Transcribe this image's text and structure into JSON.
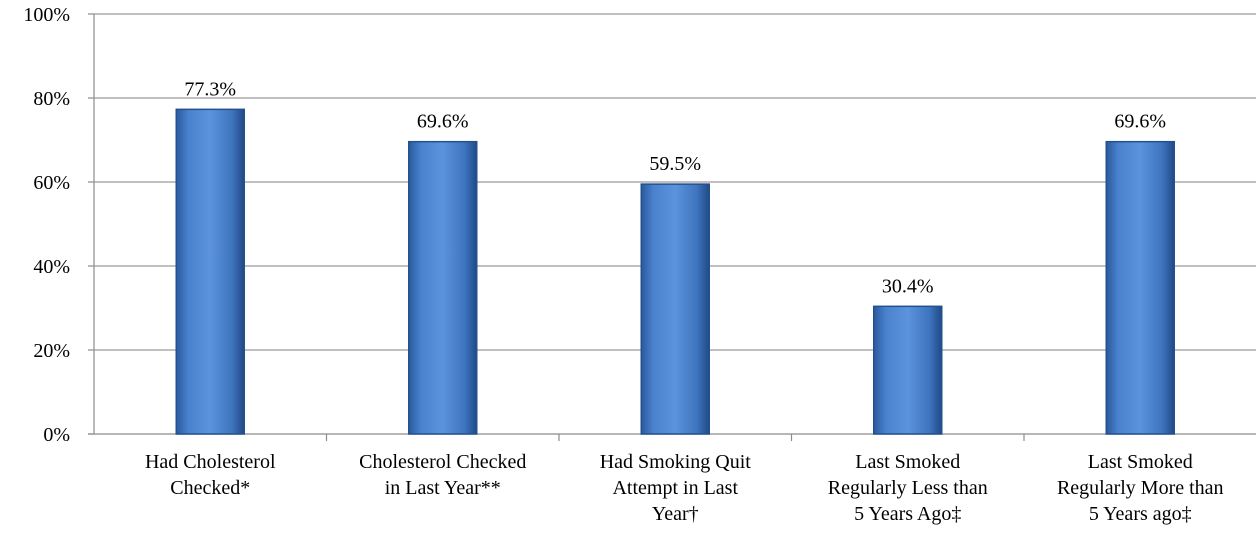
{
  "chart_data": {
    "type": "bar",
    "categories": [
      [
        "Had Cholesterol",
        "Checked*"
      ],
      [
        "Cholesterol Checked",
        "in Last Year**"
      ],
      [
        "Had Smoking Quit",
        "Attempt in Last",
        "Year†"
      ],
      [
        "Last Smoked",
        "Regularly Less than",
        "5 Years Ago‡"
      ],
      [
        "Last Smoked",
        "Regularly More than",
        "5 Years ago‡"
      ]
    ],
    "values": [
      77.3,
      69.6,
      59.5,
      30.4,
      69.6
    ],
    "data_labels": [
      "77.3%",
      "69.6%",
      "59.5%",
      "30.4%",
      "69.6%"
    ],
    "y_ticks": [
      0,
      20,
      40,
      60,
      80,
      100
    ],
    "y_tick_labels": [
      "0%",
      "20%",
      "40%",
      "60%",
      "80%",
      "100%"
    ],
    "ylim": [
      0,
      100
    ],
    "title": "",
    "xlabel": "",
    "ylabel": "",
    "grid": true,
    "bar_color": "#4a7ec9",
    "bar_color_dark": "#23508e"
  }
}
